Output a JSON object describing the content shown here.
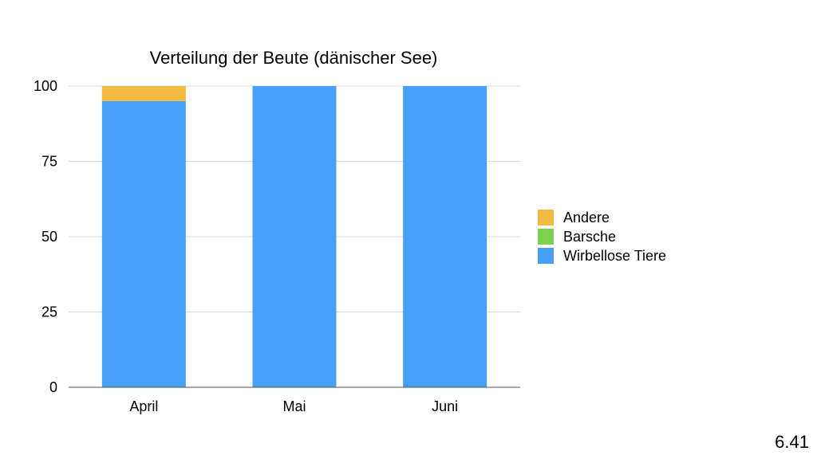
{
  "chart_data": {
    "type": "bar",
    "stacked": true,
    "title": "Verteilung der Beute (dänischer See)",
    "xlabel": "",
    "ylabel": "",
    "categories": [
      "April",
      "Mai",
      "Juni"
    ],
    "series": [
      {
        "name": "Wirbellose Tiere",
        "color": "#479ff8",
        "values": [
          95,
          100,
          100
        ]
      },
      {
        "name": "Barsche",
        "color": "#7ed14f",
        "values": [
          0,
          0,
          0
        ]
      },
      {
        "name": "Andere",
        "color": "#f0bb40",
        "values": [
          5,
          0,
          0
        ]
      }
    ],
    "ylim": [
      0,
      100
    ],
    "yticks": [
      0,
      25,
      50,
      75,
      100
    ],
    "grid": true,
    "legend": {
      "position": "right",
      "entries": [
        {
          "label": "Andere",
          "color": "#f0bb40"
        },
        {
          "label": "Barsche",
          "color": "#7ed14f"
        },
        {
          "label": "Wirbellose Tiere",
          "color": "#479ff8"
        }
      ]
    }
  },
  "slide": {
    "number": "6.41"
  }
}
